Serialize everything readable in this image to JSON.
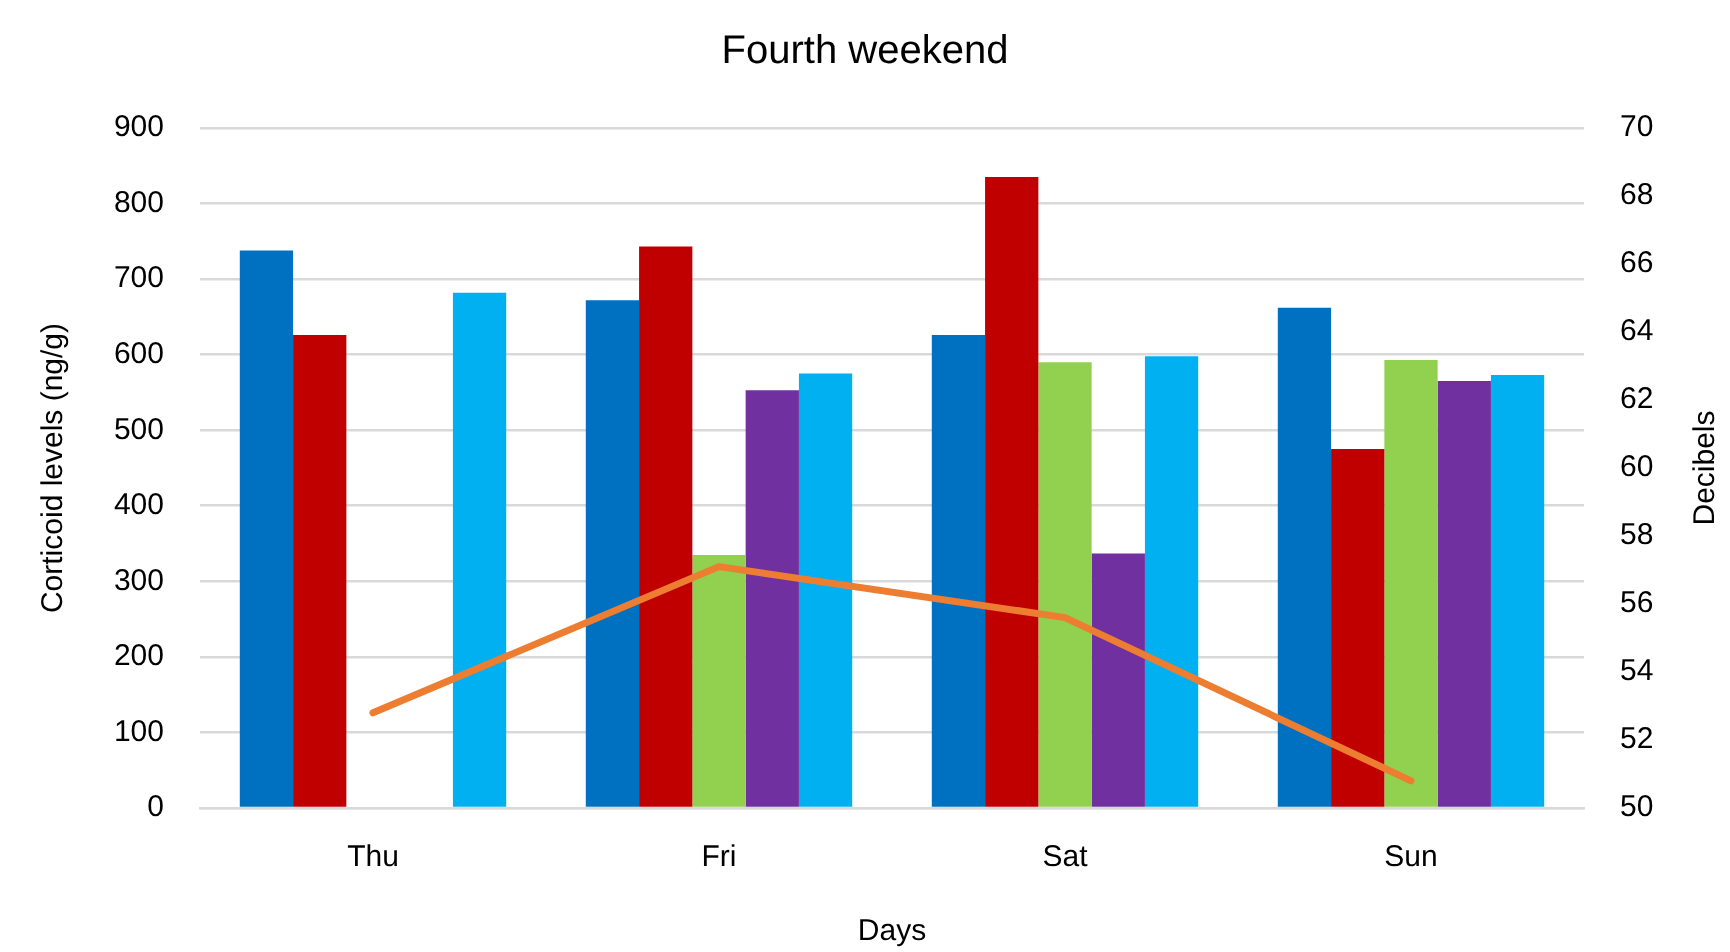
{
  "chart_data": {
    "type": "bar",
    "title": "Fourth weekend",
    "xlabel": "Days",
    "ylabel": "Corticoid levels (ng/g)",
    "y2label": "Decibels",
    "categories": [
      "Thu",
      "Fri",
      "Sat",
      "Sun"
    ],
    "series": [
      {
        "color": "#0070c0",
        "values": [
          738,
          672,
          626,
          662
        ]
      },
      {
        "color": "#c00000",
        "values": [
          626,
          743,
          835,
          475
        ]
      },
      {
        "color": "#92d050",
        "values": [
          null,
          335,
          590,
          593
        ]
      },
      {
        "color": "#7030a0",
        "values": [
          null,
          553,
          337,
          565
        ]
      },
      {
        "color": "#00b0f0",
        "values": [
          682,
          575,
          598,
          573
        ]
      },
      {
        "type": "line",
        "axis": "y2",
        "color": "#ed7d31",
        "values": [
          52.8,
          57.1,
          55.6,
          50.8
        ]
      }
    ],
    "ylim": [
      0,
      900
    ],
    "yticks": [
      0,
      100,
      200,
      300,
      400,
      500,
      600,
      700,
      800,
      900
    ],
    "y2lim": [
      50,
      70
    ],
    "y2ticks": [
      50,
      52,
      54,
      56,
      58,
      60,
      62,
      64,
      66,
      68,
      70
    ],
    "grid": "y",
    "legend": false,
    "marker": "none"
  }
}
